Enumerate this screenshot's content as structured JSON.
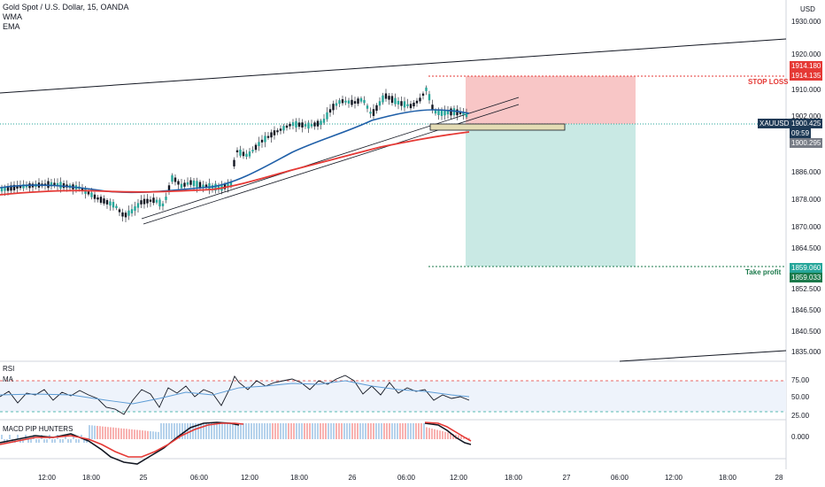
{
  "header": {
    "symbol_title": "Gold Spot / U.S. Dollar, 15, OANDA",
    "indicators": [
      "WMA",
      "EMA"
    ],
    "currency": "USD"
  },
  "price_axis": {
    "ticks": [
      "1930.000",
      "1920.000",
      "1910.000",
      "1902.000",
      "1886.000",
      "1878.000",
      "1870.000",
      "1864.500",
      "1852.500",
      "1846.500",
      "1840.500",
      "1835.000"
    ]
  },
  "tags": {
    "stop_loss_upper": "1914.180",
    "stop_loss_lower": "1914.135",
    "symbol": "XAUUSD",
    "last_price": "1900.425",
    "countdown": "09:59",
    "entry": "1900.295",
    "take_profit_upper": "1859.060",
    "take_profit_lower": "1859.033"
  },
  "labels": {
    "stop_loss": "STOP LOSS",
    "take_profit": "Take profit"
  },
  "rsi": {
    "title": "RSI",
    "ma": "MA",
    "ticks": [
      "75.00",
      "50.00",
      "25.00"
    ]
  },
  "macd": {
    "title": "MACD PIP HUNTERS",
    "ticks": [
      "0.000"
    ]
  },
  "time_axis": {
    "ticks": [
      "12:00",
      "18:00",
      "25",
      "06:00",
      "12:00",
      "18:00",
      "26",
      "06:00",
      "12:00",
      "18:00",
      "27",
      "06:00",
      "12:00",
      "18:00",
      "28"
    ]
  },
  "colors": {
    "up": "#26a69a",
    "down": "#131722",
    "wma": "#1f5fa8",
    "ema": "#e53935",
    "stop_zone": "#f8c6c6",
    "profit_zone": "#c9e9e4",
    "stop_label": "#e53935",
    "profit_label": "#1b7a4b"
  }
}
